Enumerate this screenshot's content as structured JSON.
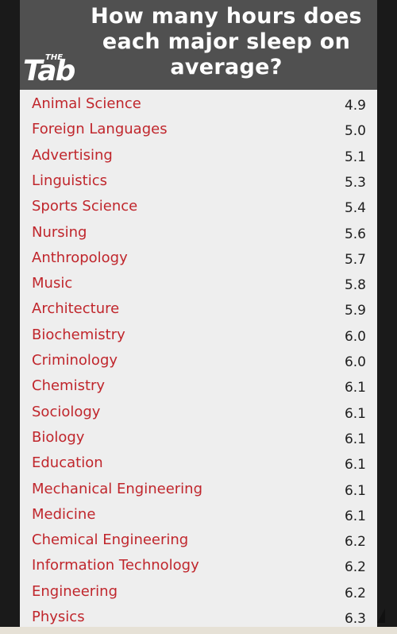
{
  "header": {
    "title": "How many hours does each major sleep on average?",
    "logo_small": "THE",
    "logo_main": "Tab"
  },
  "colors": {
    "header_background": "#505050",
    "table_background": "#eeeeee",
    "major_text": "#c0262c",
    "value_text": "#1e1e1e"
  },
  "chart_data": {
    "type": "table",
    "title": "How many hours does each major sleep on average?",
    "rows": [
      {
        "major": "Animal Science",
        "hours": 4.9,
        "display": "4.9"
      },
      {
        "major": "Foreign Languages",
        "hours": 5.0,
        "display": "5.0"
      },
      {
        "major": "Advertising",
        "hours": 5.1,
        "display": "5.1"
      },
      {
        "major": "Linguistics",
        "hours": 5.3,
        "display": "5.3"
      },
      {
        "major": "Sports Science",
        "hours": 5.4,
        "display": "5.4"
      },
      {
        "major": "Nursing",
        "hours": 5.6,
        "display": "5.6"
      },
      {
        "major": "Anthropology",
        "hours": 5.7,
        "display": "5.7"
      },
      {
        "major": "Music",
        "hours": 5.8,
        "display": "5.8"
      },
      {
        "major": "Architecture",
        "hours": 5.9,
        "display": "5.9"
      },
      {
        "major": "Biochemistry",
        "hours": 6.0,
        "display": "6.0"
      },
      {
        "major": "Criminology",
        "hours": 6.0,
        "display": "6.0"
      },
      {
        "major": "Chemistry",
        "hours": 6.1,
        "display": "6.1"
      },
      {
        "major": "Sociology",
        "hours": 6.1,
        "display": "6.1"
      },
      {
        "major": "Biology",
        "hours": 6.1,
        "display": "6.1"
      },
      {
        "major": "Education",
        "hours": 6.1,
        "display": "6.1"
      },
      {
        "major": "Mechanical Engineering",
        "hours": 6.1,
        "display": "6.1"
      },
      {
        "major": "Medicine",
        "hours": 6.1,
        "display": "6.1"
      },
      {
        "major": "Chemical Engineering",
        "hours": 6.2,
        "display": "6.2"
      },
      {
        "major": "Information Technology",
        "hours": 6.2,
        "display": "6.2"
      },
      {
        "major": "Engineering",
        "hours": 6.2,
        "display": "6.2"
      },
      {
        "major": "Physics",
        "hours": 6.3,
        "display": "6.3"
      }
    ]
  }
}
